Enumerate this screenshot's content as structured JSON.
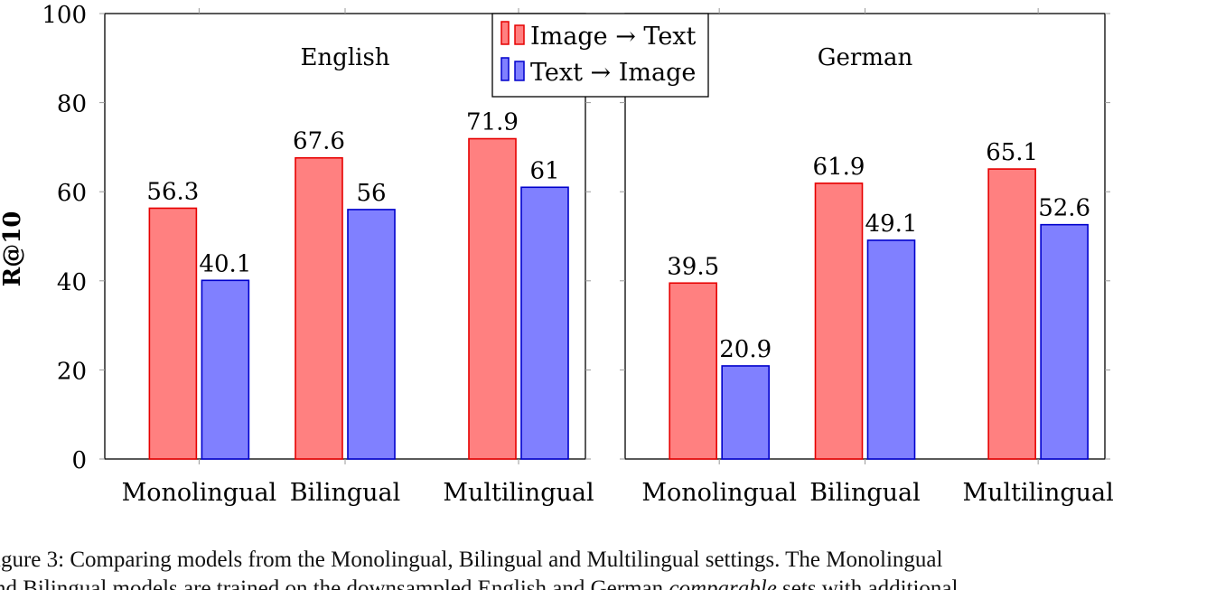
{
  "chart_data": [
    {
      "type": "bar",
      "title": "English",
      "categories": [
        "Monolingual",
        "Bilingual",
        "Multilingual"
      ],
      "ylabel": "R@10",
      "ylim": [
        0,
        100
      ],
      "yticks": [
        0,
        20,
        40,
        60,
        80,
        100
      ],
      "series": [
        {
          "name": "Image → Text",
          "values": [
            56.3,
            67.6,
            71.9
          ],
          "color": "#ff8080",
          "stroke": "#e60000"
        },
        {
          "name": "Text → Image",
          "values": [
            40.1,
            56,
            61
          ],
          "color": "#8080ff",
          "stroke": "#0000cc"
        }
      ],
      "data_labels": [
        [
          "56.3",
          "67.6",
          "71.9"
        ],
        [
          "40.1",
          "56",
          "61"
        ]
      ],
      "legend_position": "top-right"
    },
    {
      "type": "bar",
      "title": "German",
      "categories": [
        "Monolingual",
        "Bilingual",
        "Multilingual"
      ],
      "ylim": [
        0,
        100
      ],
      "series": [
        {
          "name": "Image → Text",
          "values": [
            39.5,
            61.9,
            65.1
          ],
          "color": "#ff8080",
          "stroke": "#e60000"
        },
        {
          "name": "Text → Image",
          "values": [
            20.9,
            49.1,
            52.6
          ],
          "color": "#8080ff",
          "stroke": "#0000cc"
        }
      ],
      "data_labels": [
        [
          "39.5",
          "61.9",
          "65.1"
        ],
        [
          "20.9",
          "49.1",
          "52.6"
        ]
      ]
    }
  ],
  "caption": {
    "line1": "igure 3: Comparing models from the Monolingual, Bilingual and Multilingual settings.  The Monolingual",
    "line2_prefix": "nd Bilingual models are trained on the downsampled English and German ",
    "line2_italic": "comparable",
    "line2_suffix": " sets with additional"
  }
}
